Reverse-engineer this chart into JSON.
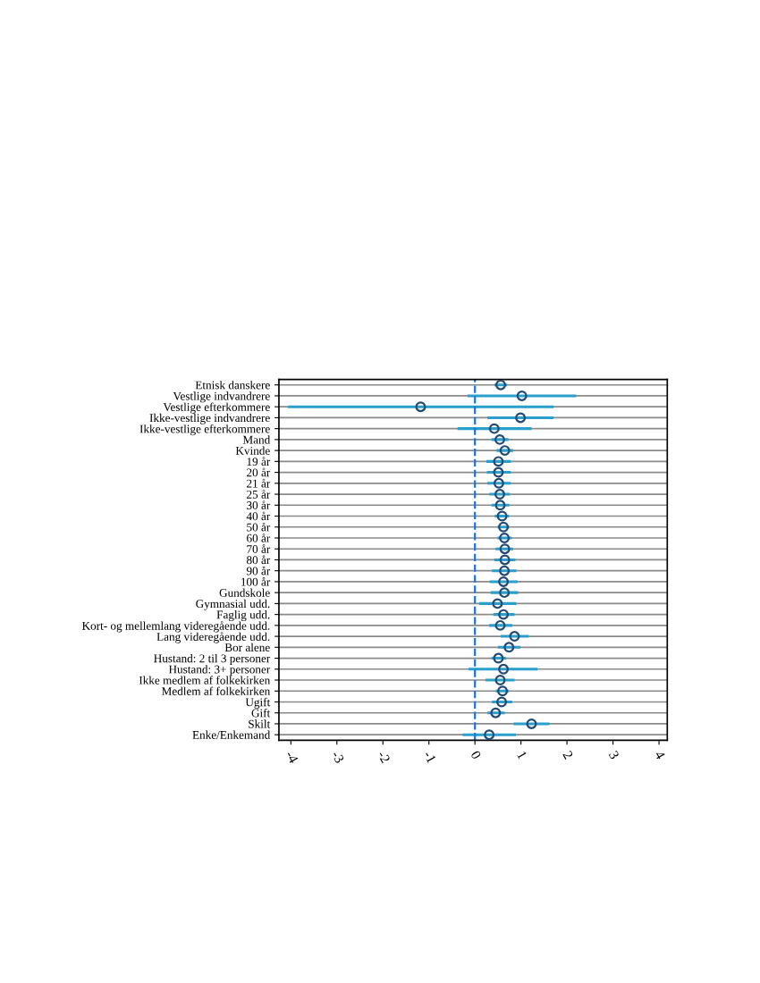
{
  "chart_data": {
    "type": "scatter",
    "orientation": "horizontal",
    "marker": "circle",
    "grid": "y",
    "categories": [
      "Etnisk danskere",
      "Vestlige indvandrere",
      "Vestlige efterkommere",
      "Ikke-vestlige indvandrere",
      "Ikke-vestlige efterkommere",
      "Mand",
      "Kvinde",
      "19 år",
      "20 år",
      "21 år",
      "25 år",
      "30 år",
      "40 år",
      "50 år",
      "60 år",
      "70 år",
      "80 år",
      "90 år",
      "100 år",
      "Gundskole",
      "Gymnasial udd.",
      "Faglig udd.",
      "Kort- og mellemlang videregående udd.",
      "Lang videregående udd.",
      "Bor alene",
      "Hustand: 2 til 3 personer",
      "Hustand: 3+ personer",
      "Ikke medlem af folkekirken",
      "Medlem af folkekirken",
      "Ugift",
      "Gift",
      "Skilt",
      "Enke/Enkemand"
    ],
    "series": [
      {
        "color": "#234a74",
        "values": [
          0.56,
          1.02,
          -1.18,
          0.99,
          0.42,
          0.54,
          0.65,
          0.51,
          0.51,
          0.52,
          0.54,
          0.55,
          0.59,
          0.62,
          0.64,
          0.65,
          0.65,
          0.64,
          0.62,
          0.64,
          0.49,
          0.62,
          0.55,
          0.86,
          0.74,
          0.51,
          0.62,
          0.55,
          0.6,
          0.58,
          0.45,
          1.23,
          0.31
        ],
        "errors": [
          [
            0.42,
            0.7
          ],
          [
            -0.16,
            2.2
          ],
          [
            -4.06,
            1.71
          ],
          [
            0.27,
            1.71
          ],
          [
            -0.38,
            1.23
          ],
          [
            0.36,
            0.73
          ],
          [
            0.47,
            0.83
          ],
          [
            0.25,
            0.78
          ],
          [
            0.26,
            0.78
          ],
          [
            0.27,
            0.78
          ],
          [
            0.31,
            0.76
          ],
          [
            0.36,
            0.75
          ],
          [
            0.43,
            0.74
          ],
          [
            0.49,
            0.75
          ],
          [
            0.49,
            0.8
          ],
          [
            0.45,
            0.83
          ],
          [
            0.42,
            0.88
          ],
          [
            0.37,
            0.9
          ],
          [
            0.32,
            0.93
          ],
          [
            0.34,
            0.94
          ],
          [
            0.09,
            0.9
          ],
          [
            0.4,
            0.86
          ],
          [
            0.31,
            0.81
          ],
          [
            0.56,
            1.17
          ],
          [
            0.5,
            0.99
          ],
          [
            0.36,
            0.68
          ],
          [
            -0.14,
            1.36
          ],
          [
            0.23,
            0.86
          ],
          [
            0.45,
            0.74
          ],
          [
            0.37,
            0.81
          ],
          [
            0.27,
            0.65
          ],
          [
            0.84,
            1.62
          ],
          [
            -0.27,
            0.89
          ]
        ]
      }
    ],
    "xlim": [
      -4.26,
      4.18
    ],
    "xticks": [
      -4,
      -3,
      -2,
      -1,
      0,
      1,
      2,
      3,
      4
    ],
    "ref_lines": [
      {
        "axis": "x",
        "value": 0,
        "color": "#1a73e8",
        "line_style": "dashed"
      }
    ]
  }
}
